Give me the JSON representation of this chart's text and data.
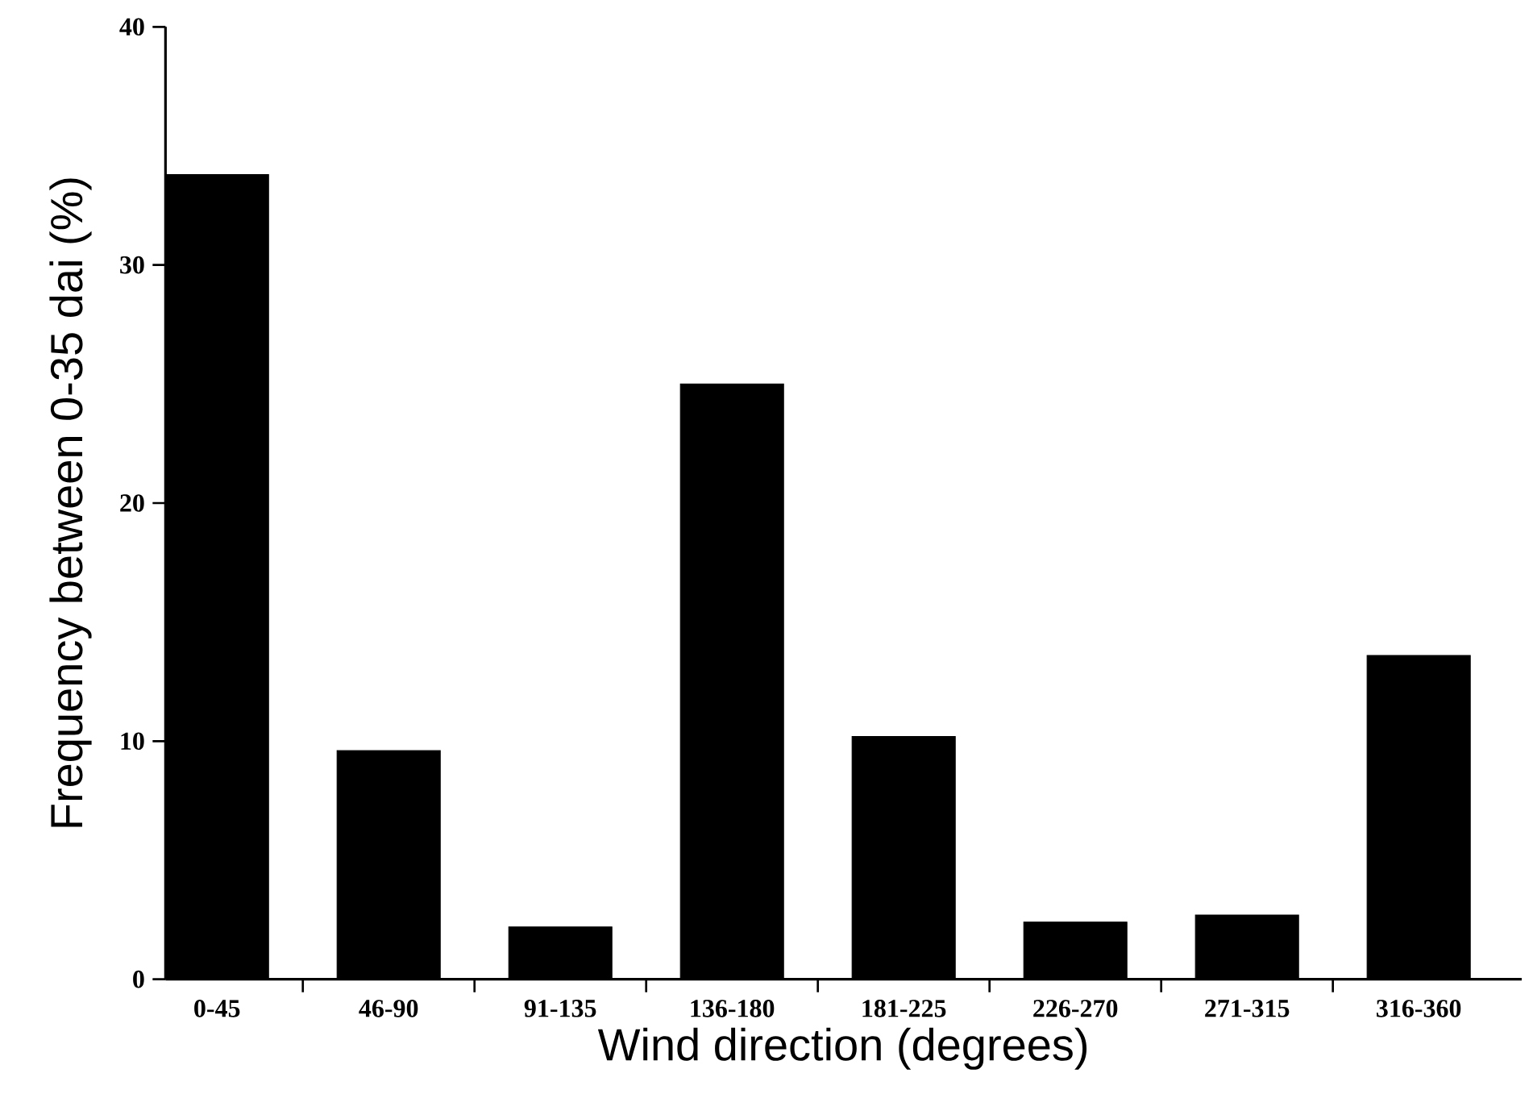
{
  "chart_data": {
    "type": "bar",
    "xlabel": "Wind direction (degrees)",
    "ylabel": "Frequency between 0-35 dai (%)",
    "categories": [
      "0-45",
      "46-90",
      "91-135",
      "136-180",
      "181-225",
      "226-270",
      "271-315",
      "316-360"
    ],
    "values": [
      33.8,
      9.6,
      2.2,
      25.0,
      10.2,
      2.4,
      2.7,
      13.6
    ],
    "color": "#000000",
    "ylim": [
      0,
      40
    ],
    "yticks": [
      0,
      10,
      20,
      30,
      40
    ],
    "grid": false
  }
}
